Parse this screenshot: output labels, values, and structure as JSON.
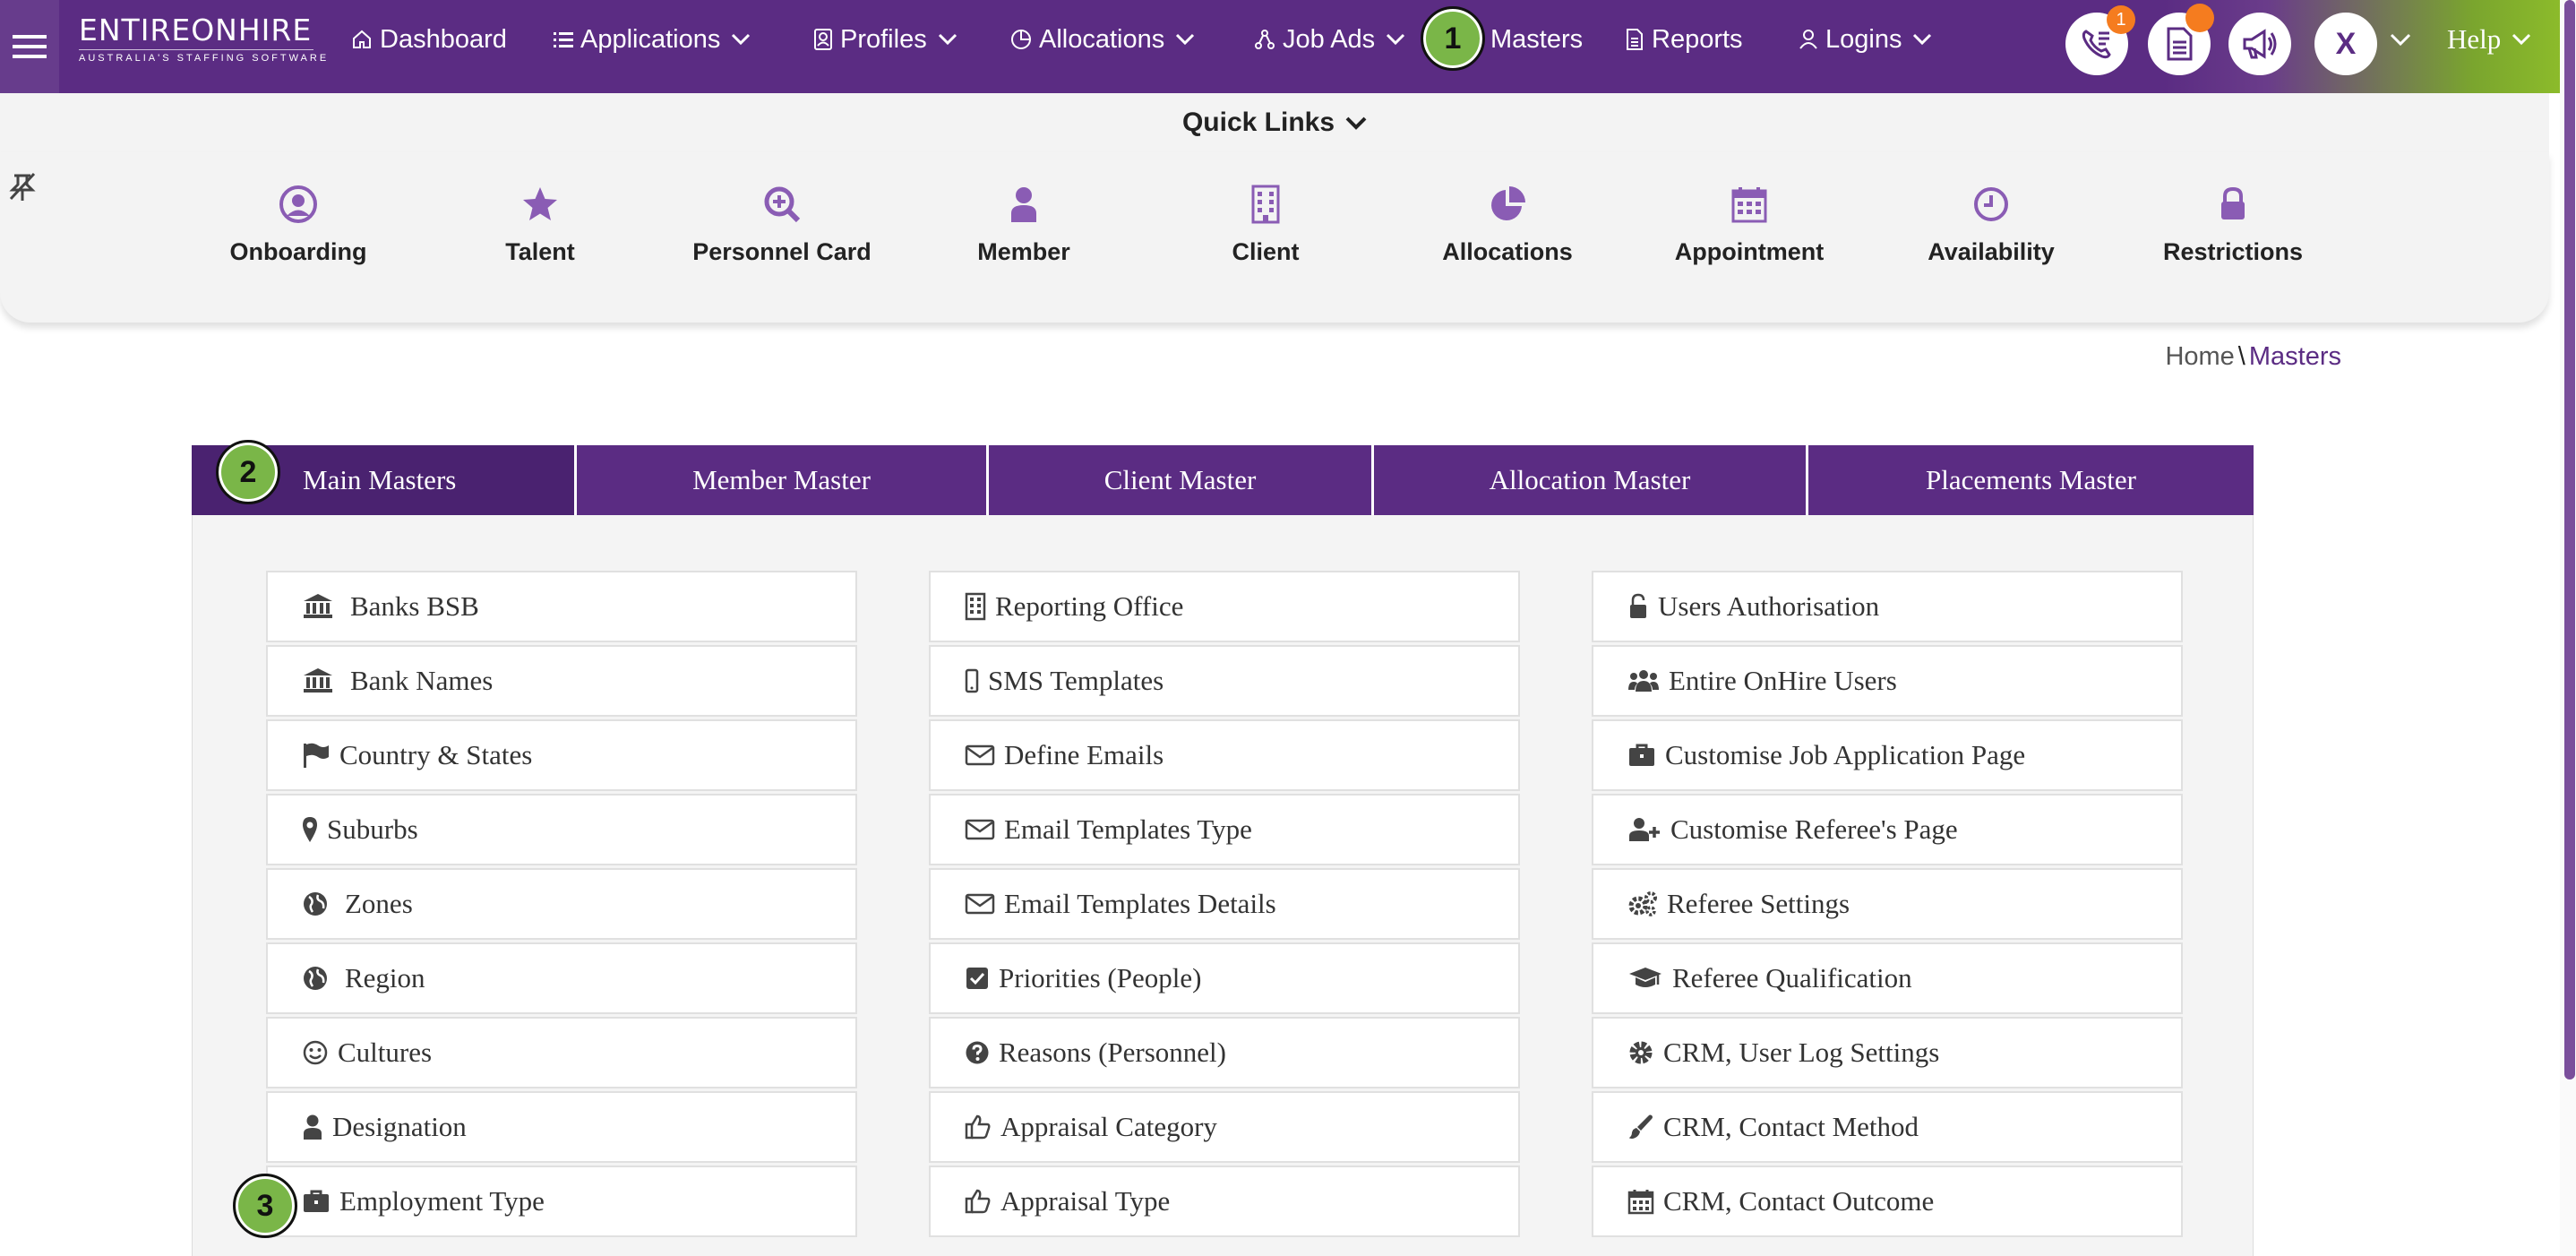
{
  "brand": {
    "name": "ENTIREONHIRE",
    "tagline": "AUSTRALIA'S STAFFING SOFTWARE",
    "primary_color": "#5b2c83",
    "accent_color": "#8fbf2a"
  },
  "nav": {
    "items": [
      {
        "label": "Dashboard",
        "icon": "home-icon",
        "dropdown": false
      },
      {
        "label": "Applications",
        "icon": "list-icon",
        "dropdown": true
      },
      {
        "label": "Profiles",
        "icon": "profile-icon",
        "dropdown": true
      },
      {
        "label": "Allocations",
        "icon": "pie-icon",
        "dropdown": true
      },
      {
        "label": "Job Ads",
        "icon": "sitemap-icon",
        "dropdown": true
      },
      {
        "label": "Masters",
        "icon": "",
        "dropdown": false
      },
      {
        "label": "Reports",
        "icon": "document-icon",
        "dropdown": false
      },
      {
        "label": "Logins",
        "icon": "user-icon",
        "dropdown": true
      }
    ],
    "call_badge": "1",
    "avatar_initial": "X",
    "help_label": "Help"
  },
  "quick_links": {
    "title": "Quick Links",
    "items": [
      {
        "label": "Onboarding",
        "icon": "user-circle-icon"
      },
      {
        "label": "Talent",
        "icon": "star-icon"
      },
      {
        "label": "Personnel Card",
        "icon": "search-plus-icon"
      },
      {
        "label": "Member",
        "icon": "user-icon"
      },
      {
        "label": "Client",
        "icon": "building-icon"
      },
      {
        "label": "Allocations",
        "icon": "pie-chart-icon"
      },
      {
        "label": "Appointment",
        "icon": "calendar-icon"
      },
      {
        "label": "Availability",
        "icon": "clock-icon"
      },
      {
        "label": "Restrictions",
        "icon": "lock-icon"
      }
    ]
  },
  "breadcrumb": {
    "home": "Home",
    "separator": "\\",
    "current": "Masters"
  },
  "tabs": [
    "Main Masters",
    "Member Master",
    "Client Master",
    "Allocation Master",
    "Placements Master"
  ],
  "active_tab": "Main Masters",
  "masters": {
    "col1": [
      {
        "label": "Banks BSB",
        "icon": "bank-icon"
      },
      {
        "label": "Bank Names",
        "icon": "bank-icon"
      },
      {
        "label": "Country & States",
        "icon": "flag-icon"
      },
      {
        "label": "Suburbs",
        "icon": "map-marker-icon"
      },
      {
        "label": "Zones",
        "icon": "globe-icon"
      },
      {
        "label": "Region",
        "icon": "globe-icon"
      },
      {
        "label": "Cultures",
        "icon": "smile-icon"
      },
      {
        "label": "Designation",
        "icon": "user-icon"
      },
      {
        "label": "Employment Type",
        "icon": "briefcase-icon"
      }
    ],
    "col2": [
      {
        "label": "Reporting Office",
        "icon": "building-icon"
      },
      {
        "label": "SMS Templates",
        "icon": "mobile-icon"
      },
      {
        "label": "Define Emails",
        "icon": "envelope-icon"
      },
      {
        "label": "Email Templates Type",
        "icon": "envelope-icon"
      },
      {
        "label": "Email Templates Details",
        "icon": "envelope-icon"
      },
      {
        "label": "Priorities (People)",
        "icon": "check-square-icon"
      },
      {
        "label": "Reasons (Personnel)",
        "icon": "question-circle-icon"
      },
      {
        "label": "Appraisal Category",
        "icon": "thumbs-up-icon"
      },
      {
        "label": "Appraisal Type",
        "icon": "thumbs-up-icon"
      }
    ],
    "col3": [
      {
        "label": "Users Authorisation",
        "icon": "unlock-icon"
      },
      {
        "label": "Entire OnHire Users",
        "icon": "users-icon"
      },
      {
        "label": "Customise Job Application Page",
        "icon": "briefcase-icon"
      },
      {
        "label": "Customise Referee's Page",
        "icon": "user-plus-icon"
      },
      {
        "label": "Referee Settings",
        "icon": "cogs-icon"
      },
      {
        "label": "Referee Qualification",
        "icon": "graduation-cap-icon"
      },
      {
        "label": "CRM, User Log Settings",
        "icon": "gear-icon"
      },
      {
        "label": "CRM, Contact Method",
        "icon": "paint-brush-icon"
      },
      {
        "label": "CRM, Contact Outcome",
        "icon": "calendar-icon"
      }
    ]
  },
  "step_markers": [
    "1",
    "2",
    "3"
  ]
}
